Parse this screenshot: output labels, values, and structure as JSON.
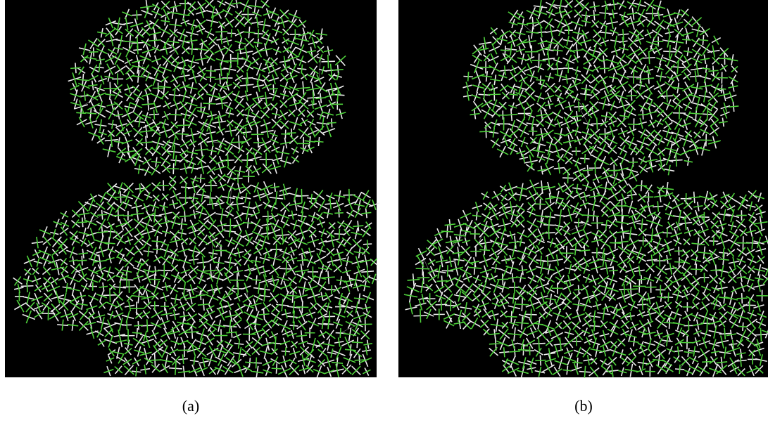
{
  "figure": {
    "panels": [
      {
        "caption": "(a)"
      },
      {
        "caption": "(b)"
      }
    ]
  }
}
